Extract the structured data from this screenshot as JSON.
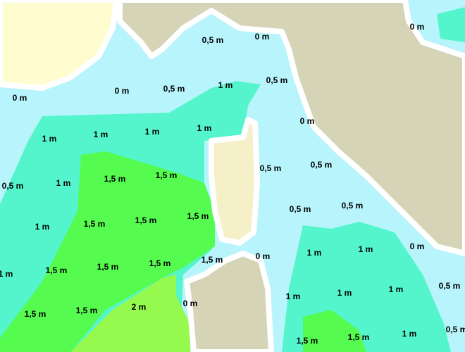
{
  "map": {
    "labels": [
      "0 m",
      "0,5 m",
      "0 m",
      "0 m",
      "0,5 m",
      "1 m",
      "0,5 m",
      "0 m",
      "0 m",
      "1 m",
      "1 m",
      "1 m",
      "1 m",
      "0,5 m",
      "0,5 m",
      "1,5 m",
      "1,5 m",
      "0,5 m",
      "1 m",
      "0,5 m",
      "0,5 m",
      "1 m",
      "1,5 m",
      "1,5 m",
      "1,5 m",
      "1 m",
      "1 m",
      "0 m",
      "0 m",
      "1,5 m",
      "1 m",
      "1,5 m",
      "1,5 m",
      "1,5 m",
      "0,5 m",
      "1 m",
      "1 m",
      "1 m",
      "0 m",
      "2 m",
      "1,5 m",
      "1,5 m",
      "1,5 m",
      "1,5 m",
      "1 m",
      "0,5 m"
    ]
  }
}
